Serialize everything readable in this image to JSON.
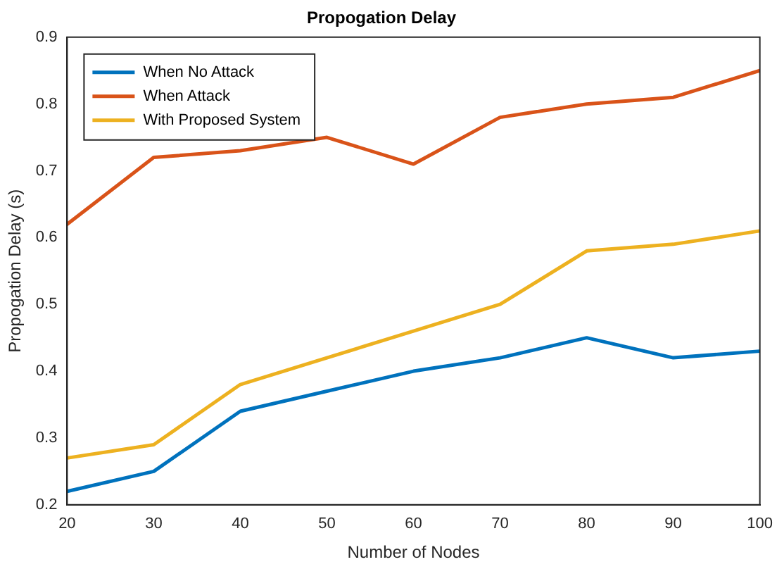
{
  "chart_data": {
    "type": "line",
    "title": "Propogation Delay",
    "xlabel": "Number of Nodes",
    "ylabel": "Propogation Delay (s)",
    "x": [
      20,
      30,
      40,
      50,
      60,
      70,
      80,
      90,
      100
    ],
    "series": [
      {
        "name": "When No Attack",
        "color": "#0072bd",
        "values": [
          0.22,
          0.25,
          0.34,
          0.37,
          0.4,
          0.42,
          0.45,
          0.42,
          0.43
        ]
      },
      {
        "name": "When Attack",
        "color": "#d95319",
        "values": [
          0.62,
          0.72,
          0.73,
          0.75,
          0.71,
          0.78,
          0.8,
          0.81,
          0.85
        ]
      },
      {
        "name": "With Proposed System",
        "color": "#edb120",
        "values": [
          0.27,
          0.29,
          0.38,
          0.42,
          0.46,
          0.5,
          0.58,
          0.59,
          0.61
        ]
      }
    ],
    "xlim": [
      20,
      100
    ],
    "xticks": [
      20,
      30,
      40,
      50,
      60,
      70,
      80,
      90,
      100
    ],
    "ylim": [
      0.2,
      0.9
    ],
    "yticks": [
      0.2,
      0.3,
      0.4,
      0.5,
      0.6,
      0.7,
      0.8,
      0.9
    ],
    "grid": false,
    "legend": "top left",
    "marker": "none",
    "line_style": "solid"
  }
}
